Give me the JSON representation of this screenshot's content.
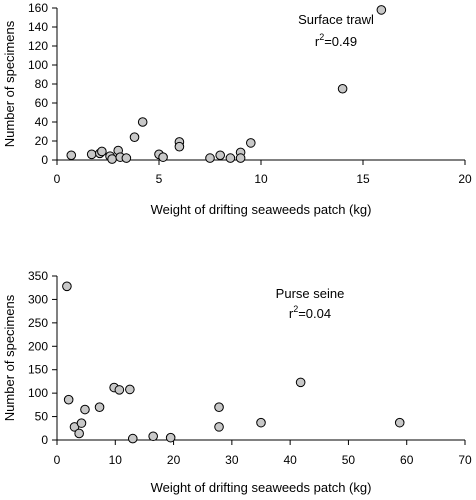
{
  "figure": "two stacked scatter plots",
  "chart_data": [
    {
      "type": "scatter",
      "annotation": "Surface trawl",
      "r2_text": "=0.49",
      "r2_symbol": "r",
      "r2_superscript": "2",
      "xlabel": "Weight of drifting seaweeds patch (kg)",
      "ylabel": "Number of specimens",
      "xlim": [
        0,
        20
      ],
      "ylim": [
        0,
        160
      ],
      "xticks": [
        0,
        5,
        10,
        15,
        20
      ],
      "yticks": [
        0,
        20,
        40,
        60,
        80,
        100,
        120,
        140,
        160
      ],
      "grid": false,
      "marker_color": "#c8c8c8",
      "points": [
        {
          "x": 0.7,
          "y": 5
        },
        {
          "x": 1.7,
          "y": 6
        },
        {
          "x": 2.1,
          "y": 7
        },
        {
          "x": 2.2,
          "y": 9
        },
        {
          "x": 2.6,
          "y": 4
        },
        {
          "x": 2.7,
          "y": 1
        },
        {
          "x": 3.0,
          "y": 10
        },
        {
          "x": 3.1,
          "y": 3
        },
        {
          "x": 3.4,
          "y": 2
        },
        {
          "x": 3.8,
          "y": 24
        },
        {
          "x": 4.2,
          "y": 40
        },
        {
          "x": 5.0,
          "y": 6
        },
        {
          "x": 5.2,
          "y": 3
        },
        {
          "x": 6.0,
          "y": 19
        },
        {
          "x": 6.0,
          "y": 14
        },
        {
          "x": 7.5,
          "y": 2
        },
        {
          "x": 8.0,
          "y": 5
        },
        {
          "x": 8.5,
          "y": 2
        },
        {
          "x": 9.0,
          "y": 8
        },
        {
          "x": 9.0,
          "y": 2
        },
        {
          "x": 9.5,
          "y": 18
        },
        {
          "x": 14.0,
          "y": 75
        },
        {
          "x": 15.9,
          "y": 158
        }
      ]
    },
    {
      "type": "scatter",
      "annotation": "Purse seine",
      "r2_text": "=0.04",
      "r2_symbol": "r",
      "r2_superscript": "2",
      "xlabel": "Weight of drifting seaweeds patch (kg)",
      "ylabel": "Number of specimens",
      "xlim": [
        0,
        70
      ],
      "ylim": [
        0,
        350
      ],
      "xticks": [
        0,
        10,
        20,
        30,
        40,
        50,
        60,
        70
      ],
      "yticks": [
        0,
        50,
        100,
        150,
        200,
        250,
        300,
        350
      ],
      "grid": false,
      "marker_color": "#c8c8c8",
      "points": [
        {
          "x": 1.7,
          "y": 328
        },
        {
          "x": 2.0,
          "y": 86
        },
        {
          "x": 3.0,
          "y": 28
        },
        {
          "x": 3.8,
          "y": 14
        },
        {
          "x": 4.2,
          "y": 36
        },
        {
          "x": 4.8,
          "y": 65
        },
        {
          "x": 7.3,
          "y": 70
        },
        {
          "x": 9.8,
          "y": 112
        },
        {
          "x": 10.7,
          "y": 107
        },
        {
          "x": 12.5,
          "y": 108
        },
        {
          "x": 13.0,
          "y": 3
        },
        {
          "x": 16.5,
          "y": 8
        },
        {
          "x": 19.5,
          "y": 5
        },
        {
          "x": 27.8,
          "y": 70
        },
        {
          "x": 27.8,
          "y": 28
        },
        {
          "x": 35.0,
          "y": 37
        },
        {
          "x": 41.8,
          "y": 123
        },
        {
          "x": 58.8,
          "y": 37
        }
      ]
    }
  ]
}
